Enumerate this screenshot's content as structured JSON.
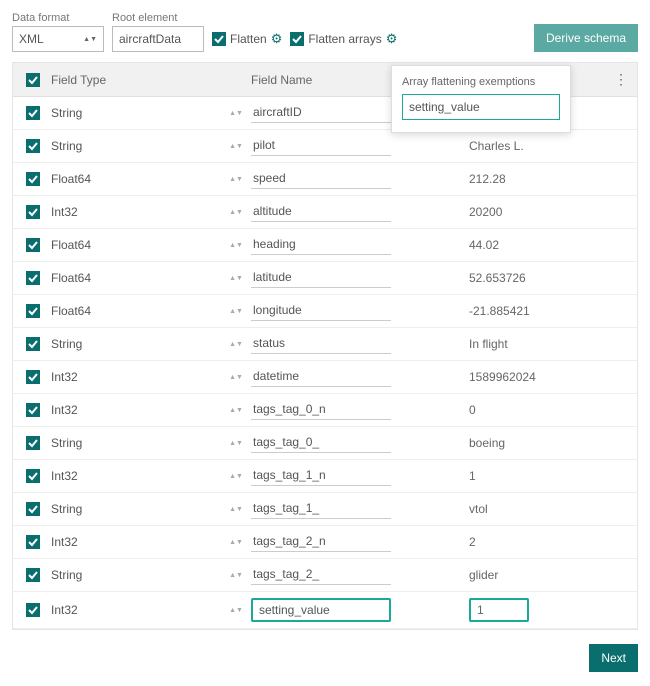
{
  "labels": {
    "data_format": "Data format",
    "root_element": "Root element",
    "flatten": "Flatten",
    "flatten_arrays": "Flatten arrays",
    "derive_schema": "Derive schema",
    "field_type": "Field Type",
    "field_name": "Field Name",
    "next": "Next"
  },
  "data_format_value": "XML",
  "root_element_value": "aircraftData",
  "flatten_checked": true,
  "flatten_arrays_checked": true,
  "popover": {
    "title": "Array flattening exemptions",
    "value": "setting_value"
  },
  "rows": [
    {
      "checked": true,
      "type": "String",
      "name": "aircraftID",
      "value": ""
    },
    {
      "checked": true,
      "type": "String",
      "name": "pilot",
      "value": "Charles L."
    },
    {
      "checked": true,
      "type": "Float64",
      "name": "speed",
      "value": "212.28"
    },
    {
      "checked": true,
      "type": "Int32",
      "name": "altitude",
      "value": "20200"
    },
    {
      "checked": true,
      "type": "Float64",
      "name": "heading",
      "value": "44.02"
    },
    {
      "checked": true,
      "type": "Float64",
      "name": "latitude",
      "value": "52.653726"
    },
    {
      "checked": true,
      "type": "Float64",
      "name": "longitude",
      "value": "-21.885421"
    },
    {
      "checked": true,
      "type": "String",
      "name": "status",
      "value": "In flight"
    },
    {
      "checked": true,
      "type": "Int32",
      "name": "datetime",
      "value": "1589962024"
    },
    {
      "checked": true,
      "type": "Int32",
      "name": "tags_tag_0_n",
      "value": "0"
    },
    {
      "checked": true,
      "type": "String",
      "name": "tags_tag_0_",
      "value": "boeing"
    },
    {
      "checked": true,
      "type": "Int32",
      "name": "tags_tag_1_n",
      "value": "1"
    },
    {
      "checked": true,
      "type": "String",
      "name": "tags_tag_1_",
      "value": "vtol"
    },
    {
      "checked": true,
      "type": "Int32",
      "name": "tags_tag_2_n",
      "value": "2"
    },
    {
      "checked": true,
      "type": "String",
      "name": "tags_tag_2_",
      "value": "glider"
    },
    {
      "checked": true,
      "type": "Int32",
      "name": "setting_value",
      "value": "1",
      "highlight": true
    }
  ],
  "colors": {
    "accent": "#0b6e6e",
    "highlight": "#18a999",
    "button_soft": "#5aa9a3",
    "header_bg": "#f1f1f1",
    "border": "#e5e5e5"
  }
}
